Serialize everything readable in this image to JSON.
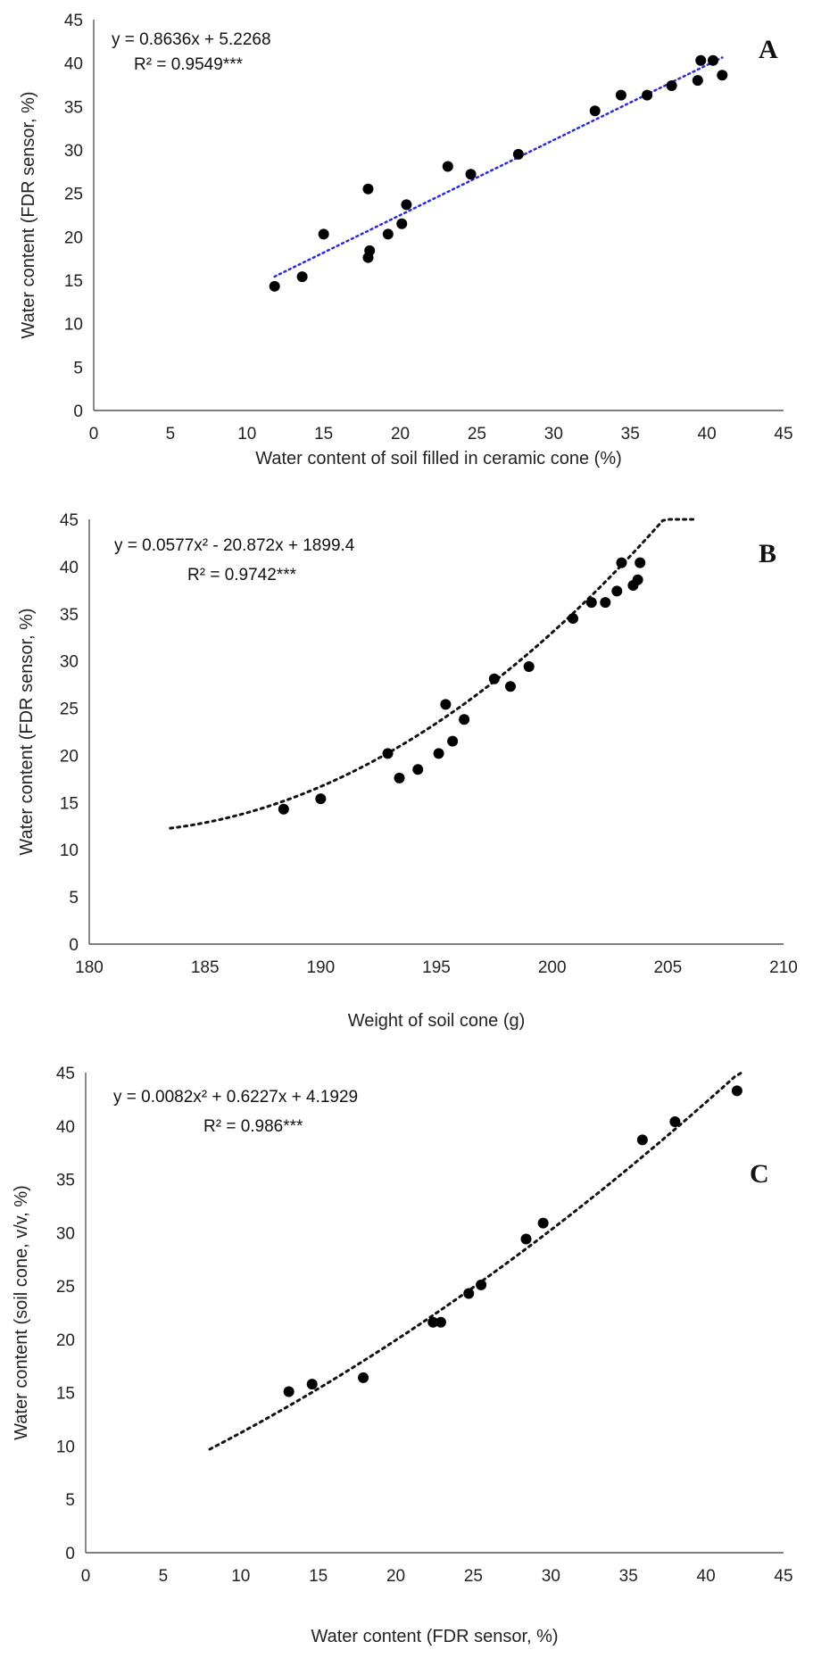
{
  "chart_data": [
    {
      "type": "scatter",
      "panel_label": "A",
      "xlabel": "Water content of soil filled in ceramic cone (%)",
      "ylabel": "Water content (FDR sensor, %)",
      "xlim": [
        0,
        45
      ],
      "ylim": [
        0,
        45
      ],
      "xticks": [
        "0",
        "5",
        "10",
        "15",
        "20",
        "25",
        "30",
        "35",
        "40",
        "45"
      ],
      "yticks": [
        "0",
        "5",
        "10",
        "15",
        "20",
        "25",
        "30",
        "35",
        "40",
        "45"
      ],
      "equation": "y = 0.8636x + 5.2268",
      "r2": "R² = 0.9549***",
      "trend": {
        "kind": "linear",
        "coef": [
          5.2268,
          0.8636
        ],
        "x_range": [
          11.8,
          41
        ],
        "color": "#2b2bd9"
      },
      "grid": false,
      "points": [
        {
          "x": 11.8,
          "y": 14.3
        },
        {
          "x": 13.6,
          "y": 15.4
        },
        {
          "x": 15.0,
          "y": 20.3
        },
        {
          "x": 17.9,
          "y": 25.5
        },
        {
          "x": 17.9,
          "y": 17.6
        },
        {
          "x": 18.0,
          "y": 18.4
        },
        {
          "x": 19.2,
          "y": 20.3
        },
        {
          "x": 20.1,
          "y": 21.5
        },
        {
          "x": 20.4,
          "y": 23.7
        },
        {
          "x": 23.1,
          "y": 28.1
        },
        {
          "x": 24.6,
          "y": 27.2
        },
        {
          "x": 27.7,
          "y": 29.5
        },
        {
          "x": 32.7,
          "y": 34.5
        },
        {
          "x": 34.4,
          "y": 36.3
        },
        {
          "x": 36.1,
          "y": 36.3
        },
        {
          "x": 37.7,
          "y": 37.4
        },
        {
          "x": 39.4,
          "y": 38.0
        },
        {
          "x": 39.6,
          "y": 40.3
        },
        {
          "x": 40.4,
          "y": 40.3
        },
        {
          "x": 41.0,
          "y": 38.6
        }
      ]
    },
    {
      "type": "scatter",
      "panel_label": "B",
      "xlabel": "Weight of soil cone (g)",
      "ylabel": "Water content (FDR sensor, %)",
      "xlim": [
        180,
        210
      ],
      "ylim": [
        0,
        45
      ],
      "xticks": [
        "180",
        "185",
        "190",
        "195",
        "200",
        "205",
        "210"
      ],
      "yticks": [
        "0",
        "5",
        "10",
        "15",
        "20",
        "25",
        "30",
        "35",
        "40",
        "45"
      ],
      "equation": "y = 0.0577x² - 20.872x + 1899.4",
      "r2": "R² = 0.9742***",
      "trend": {
        "kind": "poly2",
        "coef": [
          1899.4,
          -20.872,
          0.0577
        ],
        "x_range": [
          183.5,
          206.2
        ],
        "color": "#111111"
      },
      "grid": false,
      "points": [
        {
          "x": 188.4,
          "y": 14.3
        },
        {
          "x": 190.0,
          "y": 15.4
        },
        {
          "x": 192.9,
          "y": 20.2
        },
        {
          "x": 193.4,
          "y": 17.6
        },
        {
          "x": 194.2,
          "y": 18.5
        },
        {
          "x": 195.1,
          "y": 20.2
        },
        {
          "x": 195.4,
          "y": 25.4
        },
        {
          "x": 195.7,
          "y": 21.5
        },
        {
          "x": 196.2,
          "y": 23.8
        },
        {
          "x": 197.5,
          "y": 28.1
        },
        {
          "x": 198.2,
          "y": 27.3
        },
        {
          "x": 199.0,
          "y": 29.4
        },
        {
          "x": 200.9,
          "y": 34.5
        },
        {
          "x": 201.7,
          "y": 36.2
        },
        {
          "x": 202.3,
          "y": 36.2
        },
        {
          "x": 202.8,
          "y": 37.4
        },
        {
          "x": 203.0,
          "y": 40.4
        },
        {
          "x": 203.5,
          "y": 38.0
        },
        {
          "x": 203.7,
          "y": 38.6
        },
        {
          "x": 203.8,
          "y": 40.4
        }
      ]
    },
    {
      "type": "scatter",
      "panel_label": "C",
      "xlabel": "Water content (FDR sensor, %)",
      "ylabel": "Water content (soil cone, v/v, %)",
      "xlim": [
        0,
        45
      ],
      "ylim": [
        0,
        45
      ],
      "xticks": [
        "0",
        "5",
        "10",
        "15",
        "20",
        "25",
        "30",
        "35",
        "40",
        "45"
      ],
      "yticks": [
        "0",
        "5",
        "10",
        "15",
        "20",
        "25",
        "30",
        "35",
        "40",
        "45"
      ],
      "equation": "y = 0.0082x² + 0.6227x + 4.1929",
      "r2": "R² = 0.986***",
      "trend": {
        "kind": "poly2",
        "coef": [
          4.1929,
          0.6227,
          0.0082
        ],
        "x_range": [
          8.0,
          42.3
        ],
        "color": "#111111"
      },
      "grid": false,
      "points": [
        {
          "x": 13.1,
          "y": 15.1
        },
        {
          "x": 14.6,
          "y": 15.8
        },
        {
          "x": 17.9,
          "y": 16.4
        },
        {
          "x": 22.4,
          "y": 21.6
        },
        {
          "x": 22.9,
          "y": 21.6
        },
        {
          "x": 24.7,
          "y": 24.3
        },
        {
          "x": 25.5,
          "y": 25.1
        },
        {
          "x": 28.4,
          "y": 29.4
        },
        {
          "x": 29.5,
          "y": 30.9
        },
        {
          "x": 35.9,
          "y": 38.7
        },
        {
          "x": 38.0,
          "y": 40.4
        },
        {
          "x": 42.0,
          "y": 43.3
        }
      ]
    }
  ]
}
